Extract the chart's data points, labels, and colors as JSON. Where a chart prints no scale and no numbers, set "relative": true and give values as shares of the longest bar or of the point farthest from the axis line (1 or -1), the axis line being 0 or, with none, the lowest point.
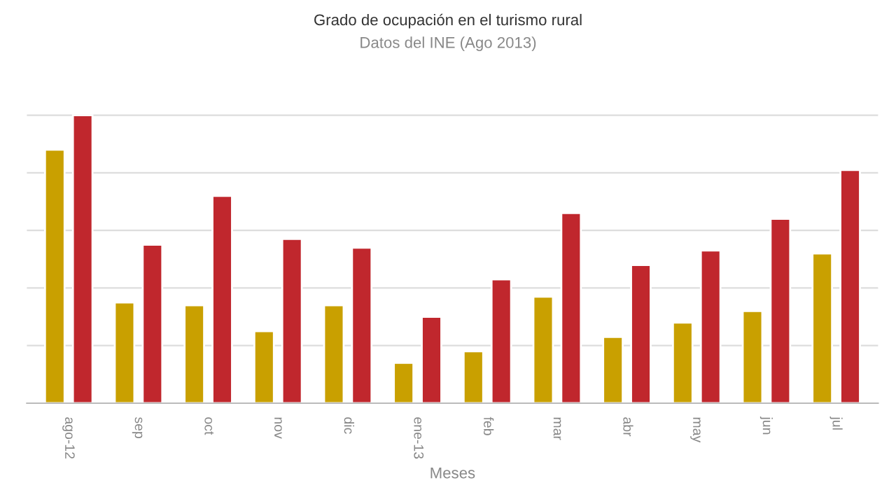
{
  "chart_data": {
    "type": "bar",
    "title": "Grado de ocupación en el turismo rural",
    "subtitle": "Datos del INE (Ago 2013)",
    "xlabel": "Meses",
    "relative": true,
    "grid": "y",
    "categories": [
      "ago-12",
      "sep",
      "oct",
      "nov",
      "dic",
      "ene-13",
      "feb",
      "mar",
      "abr",
      "may",
      "jun",
      "jul"
    ],
    "series": [
      {
        "color": "#c9a000",
        "values": [
          0.88,
          0.35,
          0.34,
          0.25,
          0.34,
          0.14,
          0.18,
          0.37,
          0.23,
          0.28,
          0.32,
          0.52
        ]
      },
      {
        "color": "#c0272d",
        "values": [
          1,
          0.55,
          0.72,
          0.57,
          0.54,
          0.3,
          0.43,
          0.66,
          0.48,
          0.53,
          0.64,
          0.81
        ]
      }
    ]
  }
}
